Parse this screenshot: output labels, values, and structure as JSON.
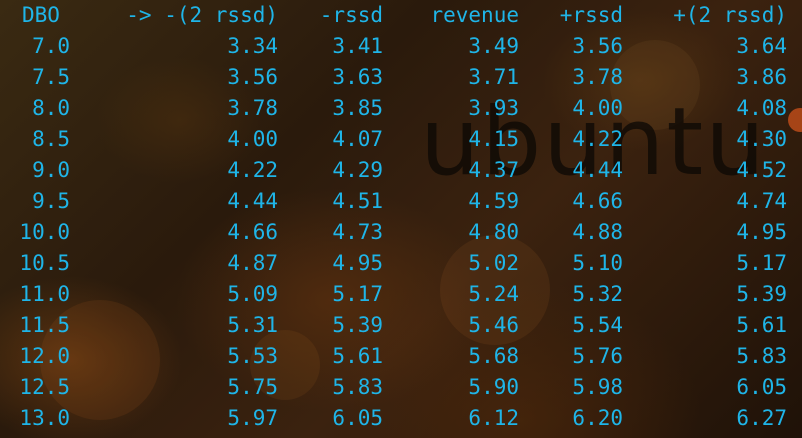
{
  "terminal": {
    "wallpaper_logo": "ubuntu",
    "text_color": "#1fb5e8",
    "columns": [
      "DBO",
      "-> -(2 rssd)",
      "-rssd",
      "revenue",
      "+rssd",
      "+(2 rssd)"
    ],
    "rows": [
      [
        "7.0",
        "3.34",
        "3.41",
        "3.49",
        "3.56",
        "3.64"
      ],
      [
        "7.5",
        "3.56",
        "3.63",
        "3.71",
        "3.78",
        "3.86"
      ],
      [
        "8.0",
        "3.78",
        "3.85",
        "3.93",
        "4.00",
        "4.08"
      ],
      [
        "8.5",
        "4.00",
        "4.07",
        "4.15",
        "4.22",
        "4.30"
      ],
      [
        "9.0",
        "4.22",
        "4.29",
        "4.37",
        "4.44",
        "4.52"
      ],
      [
        "9.5",
        "4.44",
        "4.51",
        "4.59",
        "4.66",
        "4.74"
      ],
      [
        "10.0",
        "4.66",
        "4.73",
        "4.80",
        "4.88",
        "4.95"
      ],
      [
        "10.5",
        "4.87",
        "4.95",
        "5.02",
        "5.10",
        "5.17"
      ],
      [
        "11.0",
        "5.09",
        "5.17",
        "5.24",
        "5.32",
        "5.39"
      ],
      [
        "11.5",
        "5.31",
        "5.39",
        "5.46",
        "5.54",
        "5.61"
      ],
      [
        "12.0",
        "5.53",
        "5.61",
        "5.68",
        "5.76",
        "5.83"
      ],
      [
        "12.5",
        "5.75",
        "5.83",
        "5.90",
        "5.98",
        "6.05"
      ],
      [
        "13.0",
        "5.97",
        "6.05",
        "6.12",
        "6.20",
        "6.27"
      ]
    ]
  }
}
